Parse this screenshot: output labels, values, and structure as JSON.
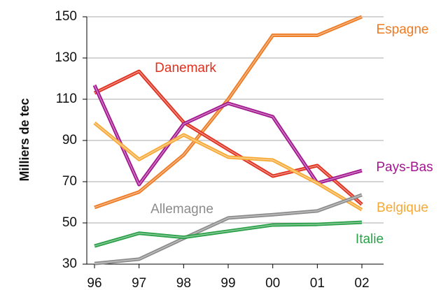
{
  "chart_data": {
    "type": "line",
    "ylabel": "Milliers de tec",
    "categories": [
      "96",
      "97",
      "98",
      "99",
      "00",
      "01",
      "02"
    ],
    "ylim": [
      30,
      150
    ],
    "yticks": [
      30,
      50,
      70,
      90,
      110,
      130,
      150
    ],
    "grid": true,
    "series": [
      {
        "name": "Espagne",
        "color": "#ee7a22",
        "values": [
          57.5,
          65,
          83,
          110,
          141,
          141,
          150
        ]
      },
      {
        "name": "Danemark",
        "color": "#e0301e",
        "values": [
          113,
          123.5,
          98.8,
          85.6,
          72.7,
          77.8,
          59
        ]
      },
      {
        "name": "Pays-Bas",
        "color": "#a3168f",
        "values": [
          116.8,
          68.6,
          98,
          108,
          101.5,
          69.3,
          75.4
        ]
      },
      {
        "name": "Belgique",
        "color": "#f7a935",
        "values": [
          98.5,
          80.8,
          92.7,
          81.9,
          80.5,
          69.3,
          56.4
        ]
      },
      {
        "name": "Allemagne",
        "color": "#8c8c8c",
        "values": [
          30.3,
          32.4,
          42.5,
          52.4,
          54,
          55.8,
          63.6
        ]
      },
      {
        "name": "Italie",
        "color": "#2aa048",
        "values": [
          38.8,
          45,
          43,
          46,
          49,
          49.3,
          50.3
        ]
      }
    ]
  }
}
